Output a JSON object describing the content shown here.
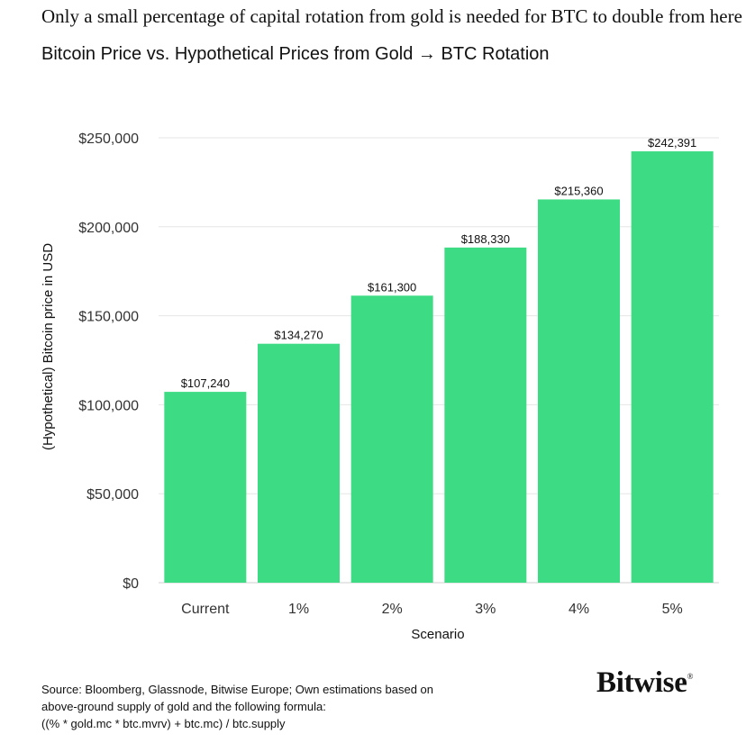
{
  "headline": "Only a small percentage of capital rotation from gold is needed for BTC to double from here",
  "chart_data": {
    "type": "bar",
    "title": "Bitcoin Price vs. Hypothetical Prices from Gold → BTC Rotation",
    "xlabel": "Scenario",
    "ylabel": "(Hypothetical) Bitcoin price in USD",
    "categories": [
      "Current",
      "1%",
      "2%",
      "3%",
      "4%",
      "5%"
    ],
    "values": [
      107240,
      134270,
      161300,
      188330,
      215360,
      242391
    ],
    "value_labels": [
      "$107,240",
      "$134,270",
      "$161,300",
      "$188,330",
      "$215,360",
      "$242,391"
    ],
    "ylim": [
      0,
      250000
    ],
    "yticks": [
      0,
      50000,
      100000,
      150000,
      200000,
      250000
    ],
    "ytick_labels": [
      "$0",
      "$50,000",
      "$100,000",
      "$150,000",
      "$200,000",
      "$250,000"
    ],
    "grid": true,
    "bar_color": "#3ddc84"
  },
  "source": {
    "lines": [
      "Source: Bloomberg, Glassnode, Bitwise Europe; Own estimations based on",
      "above-ground supply of gold and the following formula:",
      " ((% * gold.mc * btc.mvrv) + btc.mc) / btc.supply"
    ]
  },
  "logo": {
    "text": "Bitwise",
    "mark": "®"
  }
}
